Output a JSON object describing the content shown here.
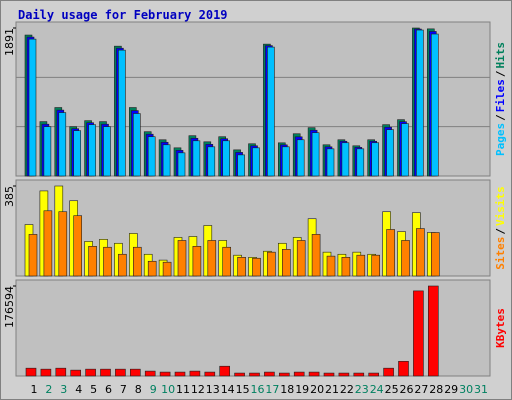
{
  "legend_separator": "/",
  "chart_data": [
    {
      "type": "bar",
      "title": "Daily usage for February 2019",
      "ylim": [
        0,
        1891
      ],
      "yticks": [
        1891
      ],
      "grid": true,
      "series": [
        {
          "name": "Hits",
          "color": "#00805c",
          "values": [
            1801,
            695,
            875,
            630,
            707,
            695,
            1659,
            875,
            566,
            463,
            360,
            515,
            437,
            502,
            334,
            412,
            1685,
            424,
            540,
            617,
            399,
            463,
            386,
            463,
            656,
            720,
            1891,
            1880,
            null,
            null,
            null
          ]
        },
        {
          "name": "Files",
          "color": "#0000ff",
          "values": [
            1775,
            662,
            842,
            604,
            681,
            662,
            1633,
            836,
            534,
            431,
            328,
            482,
            405,
            476,
            302,
            386,
            1666,
            398,
            501,
            585,
            373,
            444,
            366,
            444,
            624,
            694,
            1878,
            1847,
            null,
            null,
            null
          ]
        },
        {
          "name": "Pages",
          "color": "#00c0ff",
          "values": [
            1749,
            630,
            810,
            579,
            656,
            630,
            1608,
            798,
            502,
            399,
            296,
            450,
            373,
            450,
            270,
            360,
            1647,
            373,
            463,
            553,
            347,
            425,
            347,
            425,
            592,
            669,
            1865,
            1814,
            null,
            null,
            null
          ]
        }
      ]
    },
    {
      "type": "bar",
      "ylim": [
        0,
        385
      ],
      "yticks": [
        385
      ],
      "series": [
        {
          "name": "Visits",
          "color": "#ffff00",
          "values": [
            220,
            364,
            385,
            322,
            148,
            157,
            140,
            182,
            93,
            68,
            165,
            169,
            216,
            152,
            89,
            80,
            106,
            140,
            165,
            245,
            102,
            93,
            102,
            93,
            275,
            190,
            271,
            186,
            null,
            null,
            null
          ]
        },
        {
          "name": "Sites",
          "color": "#ff8000",
          "values": [
            178,
            279,
            275,
            258,
            127,
            123,
            93,
            123,
            63,
            59,
            152,
            127,
            152,
            123,
            80,
            76,
            102,
            114,
            152,
            178,
            85,
            80,
            89,
            89,
            199,
            152,
            203,
            186,
            null,
            null,
            null
          ]
        }
      ]
    },
    {
      "type": "bar",
      "ylim": [
        0,
        176594
      ],
      "yticks": [
        176594
      ],
      "categories": [
        "1",
        "2",
        "3",
        "4",
        "5",
        "6",
        "7",
        "8",
        "9",
        "10",
        "11",
        "12",
        "13",
        "14",
        "15",
        "16",
        "17",
        "18",
        "19",
        "20",
        "21",
        "22",
        "23",
        "24",
        "25",
        "26",
        "27",
        "28",
        "29",
        "30",
        "31"
      ],
      "category_colors": [
        "#000000",
        "#008060",
        "#008060",
        "#000000",
        "#000000",
        "#000000",
        "#000000",
        "#000000",
        "#008060",
        "#008060",
        "#000000",
        "#000000",
        "#000000",
        "#000000",
        "#000000",
        "#008060",
        "#008060",
        "#000000",
        "#000000",
        "#000000",
        "#000000",
        "#000000",
        "#008060",
        "#008060",
        "#000000",
        "#000000",
        "#000000",
        "#000000",
        "#000000",
        "#008060",
        "#008060"
      ],
      "series": [
        {
          "name": "KBytes",
          "color": "#ff0000",
          "values": [
            15356,
            13436,
            15356,
            11517,
            13436,
            13436,
            13436,
            13436,
            9598,
            7678,
            7678,
            9598,
            7678,
            19194,
            5759,
            5759,
            7678,
            5759,
            7678,
            7678,
            5759,
            5759,
            5759,
            5759,
            15356,
            28793,
            166995,
            176594,
            null,
            null,
            null
          ]
        }
      ]
    }
  ]
}
